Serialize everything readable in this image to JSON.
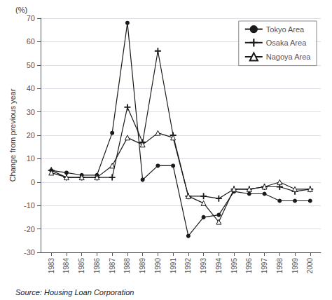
{
  "chart_data": {
    "type": "line",
    "x": [
      1983,
      1984,
      1985,
      1986,
      1987,
      1988,
      1989,
      1990,
      1991,
      1992,
      1993,
      1994,
      1995,
      1996,
      1997,
      1998,
      1999,
      2000
    ],
    "xlim": [
      1982.3,
      2000.7
    ],
    "xticks": [
      1983,
      1984,
      1985,
      1986,
      1987,
      1988,
      1989,
      1990,
      1991,
      1992,
      1993,
      1994,
      1995,
      1996,
      1997,
      1998,
      1999,
      2000
    ],
    "series": [
      {
        "name": "Tokyo Area",
        "color": "#1a1a1a",
        "marker": "circle",
        "values": [
          5,
          4,
          3,
          3,
          21,
          68,
          1,
          7,
          7,
          -23,
          -15,
          -14,
          -4,
          -5,
          -5,
          -8,
          -8,
          -8
        ]
      },
      {
        "name": "Osaka Area",
        "color": "#1a1a1a",
        "marker": "plus",
        "values": [
          5,
          2,
          2,
          2,
          2,
          32,
          17,
          56,
          20,
          -6,
          -6,
          -7,
          -3,
          -3,
          -2,
          -2,
          -4,
          -3
        ]
      },
      {
        "name": "Nagoya Area",
        "color": "#1a1a1a",
        "marker": "triangle",
        "values": [
          4,
          2,
          2,
          2,
          7,
          19,
          16,
          21,
          19,
          -6,
          -9,
          -17,
          -3,
          -3,
          -2,
          0,
          -3,
          -3
        ]
      }
    ],
    "ylabel": "Change from previous year",
    "ylim": [
      -30,
      70
    ],
    "yticks": [
      -30,
      -20,
      -10,
      0,
      10,
      20,
      30,
      40,
      50,
      60,
      70
    ],
    "annotations": [
      "(%)",
      "Source: Housing Loan Corporation"
    ],
    "grid": true,
    "legend": "upper right"
  }
}
